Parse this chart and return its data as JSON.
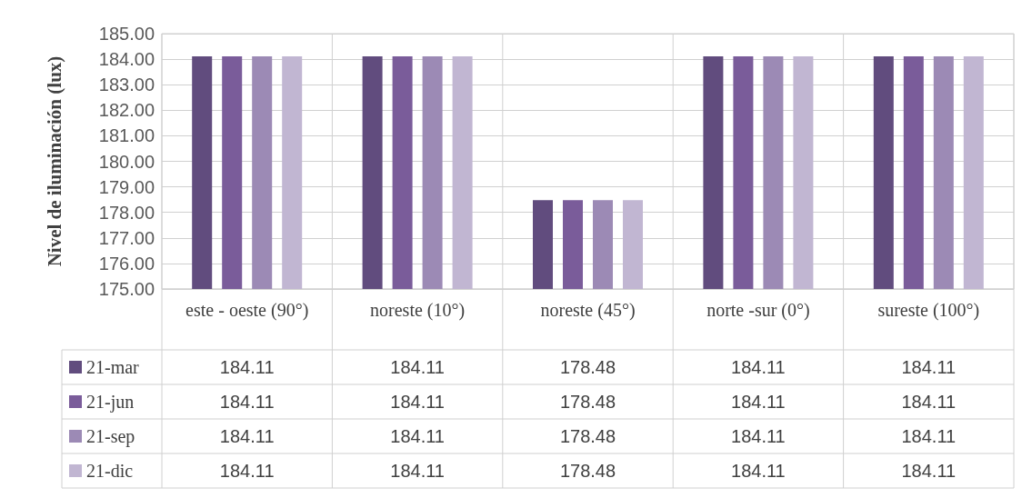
{
  "chart_data": {
    "type": "bar",
    "ylabel": "Nivel de iluminación (lux)",
    "categories": [
      "este - oeste (90°)",
      "noreste (10°)",
      "noreste (45°)",
      "norte -sur (0°)",
      "sureste (100°)"
    ],
    "series": [
      {
        "name": "21-mar",
        "color": "#614c7e",
        "values": [
          184.11,
          184.11,
          178.48,
          184.11,
          184.11
        ]
      },
      {
        "name": "21-jun",
        "color": "#7a5c9a",
        "values": [
          184.11,
          184.11,
          178.48,
          184.11,
          184.11
        ]
      },
      {
        "name": "21-sep",
        "color": "#9c8ab5",
        "values": [
          184.11,
          184.11,
          178.48,
          184.11,
          184.11
        ]
      },
      {
        "name": "21-dic",
        "color": "#c1b6d2",
        "values": [
          184.11,
          184.11,
          178.48,
          184.11,
          184.11
        ]
      }
    ],
    "ylim": [
      175,
      185
    ],
    "yticks": [
      {
        "value": 175,
        "label": "175.00"
      },
      {
        "value": 176,
        "label": "176.00"
      },
      {
        "value": 177,
        "label": "177.00"
      },
      {
        "value": 178,
        "label": "178.00"
      },
      {
        "value": 179,
        "label": "179.00"
      },
      {
        "value": 180,
        "label": "180.00"
      },
      {
        "value": 181,
        "label": "181.00"
      },
      {
        "value": 182,
        "label": "182.00"
      },
      {
        "value": 183,
        "label": "183.00"
      },
      {
        "value": 184,
        "label": "184.00"
      },
      {
        "value": 185,
        "label": "185.00"
      }
    ],
    "grid": "y",
    "legend": "bottom left",
    "data_labels": true
  }
}
